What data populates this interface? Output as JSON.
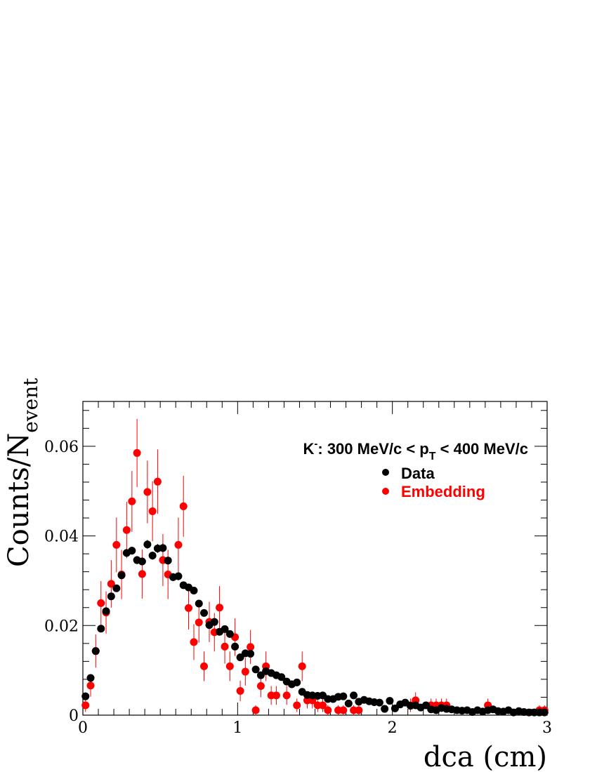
{
  "chart_data": {
    "type": "scatter",
    "title": "",
    "annotation": {
      "prefix": "K",
      "superscript": "-",
      "middle": ": 300 MeV/c < p",
      "subscript": "T",
      "suffix": " < 400 MeV/c"
    },
    "xlabel": "dca (cm)",
    "ylabel": {
      "main": "Counts/N",
      "subscript": "event"
    },
    "xlim": [
      0,
      3
    ],
    "ylim": [
      0,
      0.07
    ],
    "xticks": [
      "0",
      "1",
      "2",
      "3"
    ],
    "yticks": [
      "0",
      "0.02",
      "0.04",
      "0.06"
    ],
    "legend_position": "top-right",
    "grid": false,
    "series": [
      {
        "name": "Data",
        "color": "#000000",
        "x": [
          0.017,
          0.05,
          0.083,
          0.117,
          0.15,
          0.183,
          0.217,
          0.25,
          0.283,
          0.317,
          0.35,
          0.383,
          0.417,
          0.45,
          0.483,
          0.517,
          0.55,
          0.583,
          0.617,
          0.65,
          0.683,
          0.717,
          0.75,
          0.783,
          0.817,
          0.85,
          0.883,
          0.917,
          0.95,
          0.983,
          1.017,
          1.05,
          1.083,
          1.117,
          1.15,
          1.183,
          1.217,
          1.25,
          1.283,
          1.317,
          1.35,
          1.383,
          1.417,
          1.45,
          1.483,
          1.517,
          1.55,
          1.583,
          1.617,
          1.65,
          1.683,
          1.717,
          1.75,
          1.783,
          1.817,
          1.85,
          1.883,
          1.917,
          1.95,
          1.983,
          2.017,
          2.05,
          2.083,
          2.117,
          2.15,
          2.183,
          2.217,
          2.25,
          2.283,
          2.317,
          2.35,
          2.383,
          2.417,
          2.45,
          2.483,
          2.517,
          2.55,
          2.583,
          2.617,
          2.65,
          2.683,
          2.717,
          2.75,
          2.783,
          2.817,
          2.85,
          2.883,
          2.917,
          2.95,
          2.983
        ],
        "y": [
          0.0042,
          0.0083,
          0.0143,
          0.0193,
          0.0232,
          0.0265,
          0.0283,
          0.0312,
          0.0362,
          0.0367,
          0.0346,
          0.0343,
          0.0381,
          0.0356,
          0.0372,
          0.0373,
          0.0345,
          0.0308,
          0.031,
          0.029,
          0.0285,
          0.0278,
          0.0249,
          0.0228,
          0.0201,
          0.0208,
          0.0186,
          0.0192,
          0.0181,
          0.0153,
          0.0129,
          0.0138,
          0.0137,
          0.0102,
          0.0089,
          0.0098,
          0.0094,
          0.0089,
          0.0085,
          0.0075,
          0.0069,
          0.0073,
          0.0052,
          0.0045,
          0.0044,
          0.0043,
          0.0044,
          0.0036,
          0.0036,
          0.0041,
          0.0042,
          0.0026,
          0.0044,
          0.003,
          0.0034,
          0.0031,
          0.0029,
          0.0028,
          0.0014,
          0.0032,
          0.0015,
          0.0024,
          0.0028,
          0.0021,
          0.0022,
          0.0017,
          0.0022,
          0.0013,
          0.0011,
          0.0016,
          0.0014,
          0.0013,
          0.0011,
          0.001,
          0.0011,
          0.0007,
          0.0011,
          0.0008,
          0.0011,
          0.0013,
          0.0009,
          0.0008,
          0.0011,
          0.0006,
          0.0009,
          0.0007,
          0.0006,
          0.0006,
          0.0006,
          0.0006
        ],
        "err": [
          0.0004,
          0.0005,
          0.0006,
          0.0007,
          0.0007,
          0.0008,
          0.0008,
          0.0009,
          0.0009,
          0.0009,
          0.0009,
          0.0009,
          0.001,
          0.0009,
          0.001,
          0.001,
          0.0009,
          0.0009,
          0.0009,
          0.0008,
          0.0008,
          0.0008,
          0.0008,
          0.0007,
          0.0007,
          0.0007,
          0.0007,
          0.0007,
          0.0007,
          0.0006,
          0.0006,
          0.0006,
          0.0006,
          0.0005,
          0.0005,
          0.0005,
          0.0005,
          0.0005,
          0.0005,
          0.0004,
          0.0004,
          0.0004,
          0.0004,
          0.0003,
          0.0003,
          0.0003,
          0.0003,
          0.0003,
          0.0003,
          0.0003,
          0.0003,
          0.0003,
          0.0003,
          0.0003,
          0.0003,
          0.0003,
          0.0003,
          0.0003,
          0.0002,
          0.0003,
          0.0002,
          0.0002,
          0.0003,
          0.0002,
          0.0002,
          0.0002,
          0.0002,
          0.0002,
          0.0002,
          0.0002,
          0.0002,
          0.0002,
          0.0002,
          0.0002,
          0.0002,
          0.0001,
          0.0002,
          0.0001,
          0.0002,
          0.0002,
          0.0001,
          0.0001,
          0.0002,
          0.0001,
          0.0001,
          0.0001,
          0.0001,
          0.0001,
          0.0001,
          0.0001
        ]
      },
      {
        "name": "Embedding",
        "color": "#ff0000",
        "x": [
          0.017,
          0.05,
          0.083,
          0.117,
          0.15,
          0.183,
          0.217,
          0.25,
          0.283,
          0.317,
          0.35,
          0.383,
          0.417,
          0.45,
          0.483,
          0.517,
          0.55,
          0.617,
          0.65,
          0.683,
          0.717,
          0.75,
          0.783,
          0.817,
          0.85,
          0.883,
          0.917,
          0.95,
          0.983,
          1.017,
          1.05,
          1.083,
          1.117,
          1.15,
          1.183,
          1.217,
          1.25,
          1.317,
          1.383,
          1.417,
          1.45,
          1.483,
          1.517,
          1.55,
          1.583,
          1.65,
          1.683,
          1.75,
          1.783,
          2.117,
          2.15,
          2.25,
          2.283,
          2.317,
          2.35,
          2.617,
          2.95,
          2.983
        ],
        "y": [
          0.0022,
          0.0066,
          0.0143,
          0.025,
          0.0229,
          0.0293,
          0.038,
          0.0314,
          0.0413,
          0.0477,
          0.0585,
          0.0315,
          0.0498,
          0.0455,
          0.0521,
          0.0346,
          0.0314,
          0.038,
          0.0466,
          0.0239,
          0.0163,
          0.0207,
          0.0109,
          0.0208,
          0.0185,
          0.024,
          0.0153,
          0.0109,
          0.0174,
          0.0054,
          0.0097,
          0.0152,
          0.0011,
          0.0065,
          0.0109,
          0.0044,
          0.0044,
          0.0044,
          0.0022,
          0.0109,
          0.0033,
          0.0033,
          0.0022,
          0.0022,
          0.0011,
          0.0011,
          0.0011,
          0.0011,
          0.0011,
          0.0022,
          0.0033,
          0.0022,
          0.0022,
          0.0022,
          0.0022,
          0.0022,
          0.0011,
          0.0011
        ],
        "err": [
          0.0015,
          0.0025,
          0.0037,
          0.0049,
          0.0047,
          0.0053,
          0.0061,
          0.0055,
          0.0063,
          0.0068,
          0.0076,
          0.0055,
          0.007,
          0.0067,
          0.0072,
          0.0058,
          0.0055,
          0.0061,
          0.0068,
          0.0048,
          0.004,
          0.0045,
          0.0033,
          0.0045,
          0.0043,
          0.0048,
          0.0038,
          0.0033,
          0.0042,
          0.0023,
          0.0031,
          0.0038,
          0.0011,
          0.0025,
          0.0033,
          0.0021,
          0.0021,
          0.0021,
          0.0015,
          0.0033,
          0.0018,
          0.0018,
          0.0015,
          0.0015,
          0.0011,
          0.0011,
          0.0011,
          0.0011,
          0.0011,
          0.0015,
          0.0018,
          0.0015,
          0.0015,
          0.0015,
          0.0015,
          0.0015,
          0.0011,
          0.0011
        ]
      }
    ]
  }
}
